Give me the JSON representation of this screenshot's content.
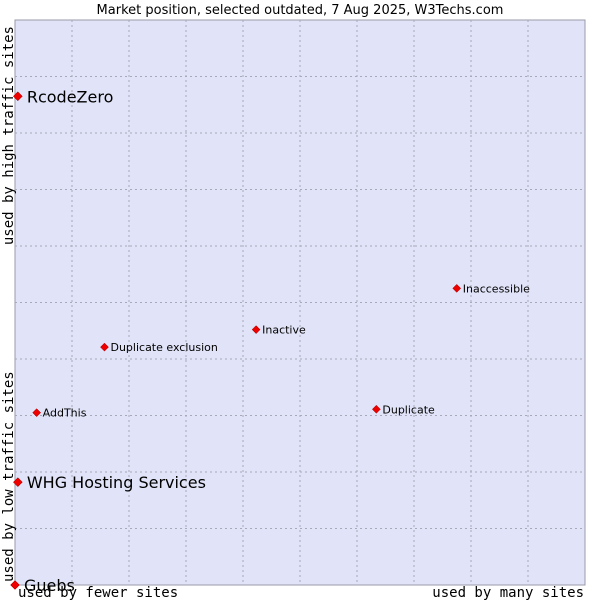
{
  "chart_data": {
    "type": "scatter",
    "title": "Market position, selected outdated, 7 Aug 2025, W3Techs.com",
    "xlabel_left": "used by fewer sites",
    "xlabel_right": "used by many sites",
    "ylabel_bottom": "used by low traffic sites",
    "ylabel_top": "used by high traffic sites",
    "xlim": [
      0,
      100
    ],
    "ylim": [
      0,
      100
    ],
    "grid": true,
    "points": [
      {
        "name": "RcodeZero",
        "x": 0.5,
        "y": 86.5,
        "emphasis": true
      },
      {
        "name": "Inaccessible",
        "x": 77.5,
        "y": 52.5,
        "emphasis": false
      },
      {
        "name": "Inactive",
        "x": 42.3,
        "y": 45.2,
        "emphasis": false
      },
      {
        "name": "Duplicate exclusion",
        "x": 15.7,
        "y": 42.1,
        "emphasis": false
      },
      {
        "name": "AddThis",
        "x": 3.8,
        "y": 30.5,
        "emphasis": false
      },
      {
        "name": "Duplicate",
        "x": 63.4,
        "y": 31.1,
        "emphasis": false
      },
      {
        "name": "WHG Hosting Services",
        "x": 0.5,
        "y": 18.2,
        "emphasis": true
      },
      {
        "name": "Guebs",
        "x": 0.0,
        "y": 0.0,
        "emphasis": true
      }
    ]
  },
  "colors": {
    "plot_background": "#e1e4f8",
    "marker": "#ee0000",
    "grid": "#a8a8b8"
  }
}
